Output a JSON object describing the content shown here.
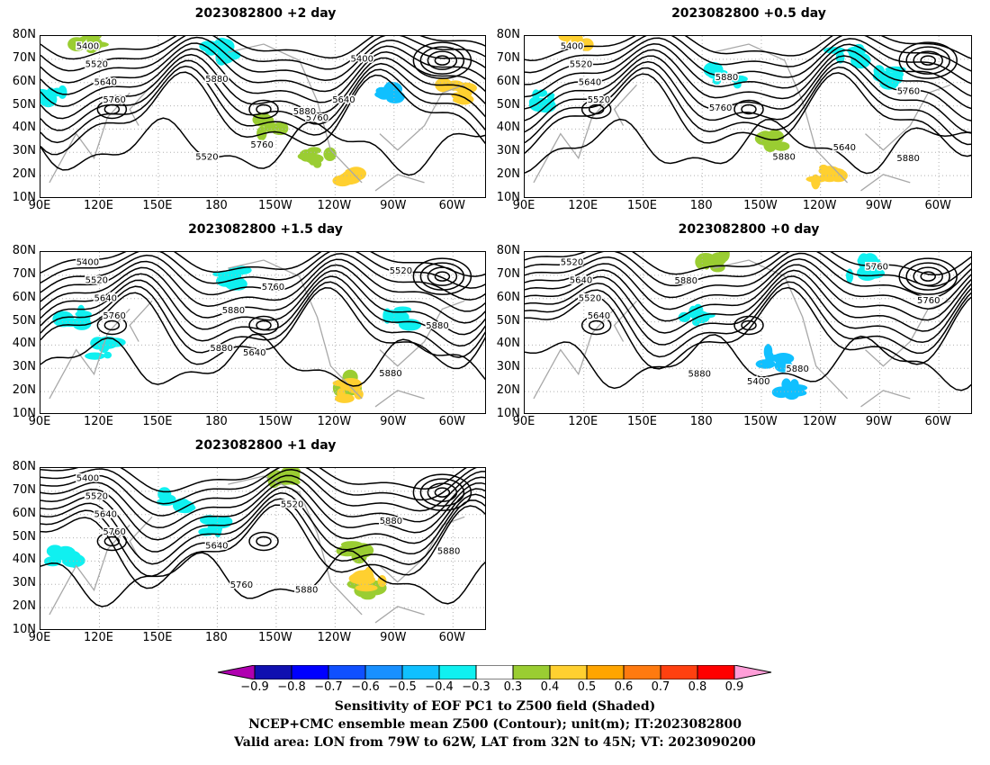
{
  "panels": [
    {
      "title": "2023082800 +2 day",
      "contour_labels": [
        "5400",
        "5520",
        "5640",
        "5760",
        "5760",
        "5880",
        "5880",
        "5520",
        "5640",
        "5760",
        "5400"
      ]
    },
    {
      "title": "2023082800 +0.5 day",
      "contour_labels": [
        "5400",
        "5520",
        "5640",
        "5520",
        "5640",
        "5760",
        "5760",
        "5880",
        "5880",
        "5880"
      ]
    },
    {
      "title": "2023082800 +1.5 day",
      "contour_labels": [
        "5400",
        "5520",
        "5640",
        "5760",
        "5520",
        "5640",
        "5760",
        "5880",
        "5880",
        "5880",
        "5880"
      ]
    },
    {
      "title": "2023082800 +0 day",
      "contour_labels": [
        "5520",
        "5640",
        "5520",
        "5640",
        "5760",
        "5400",
        "5760",
        "5880",
        "5880",
        "5880"
      ]
    },
    {
      "title": "2023082800 +1 day",
      "contour_labels": [
        "5400",
        "5520",
        "5640",
        "5760",
        "5640",
        "5520",
        "5760",
        "5880",
        "5880",
        "5880"
      ]
    }
  ],
  "axes": {
    "y_ticks": [
      "80N",
      "70N",
      "60N",
      "50N",
      "40N",
      "30N",
      "20N",
      "10N"
    ],
    "x_ticks": [
      "90E",
      "120E",
      "150E",
      "180",
      "150W",
      "120W",
      "90W",
      "60W"
    ]
  },
  "colorbar": {
    "labels": [
      "−0.9",
      "−0.8",
      "−0.7",
      "−0.6",
      "−0.5",
      "−0.4",
      "−0.3",
      "0.3",
      "0.4",
      "0.5",
      "0.6",
      "0.7",
      "0.8",
      "0.9"
    ],
    "colors": [
      "#b000b0",
      "#1010b0",
      "#0000ff",
      "#1050ff",
      "#1890ff",
      "#10c0ff",
      "#10f0f0",
      "#ffffff",
      "#9acd32",
      "#ffd030",
      "#ffa500",
      "#ff7a10",
      "#ff4010",
      "#ff0000",
      "#ff9ed8"
    ]
  },
  "caption": {
    "line1": "Sensitivity of EOF PC1 to Z500 field (Shaded)",
    "line2": "NCEP+CMC ensemble mean Z500 (Contour); unit(m); IT:2023082800",
    "line3": "Valid area: LON from 79W to 62W, LAT from 32N to 45N; VT: 2023090200"
  }
}
